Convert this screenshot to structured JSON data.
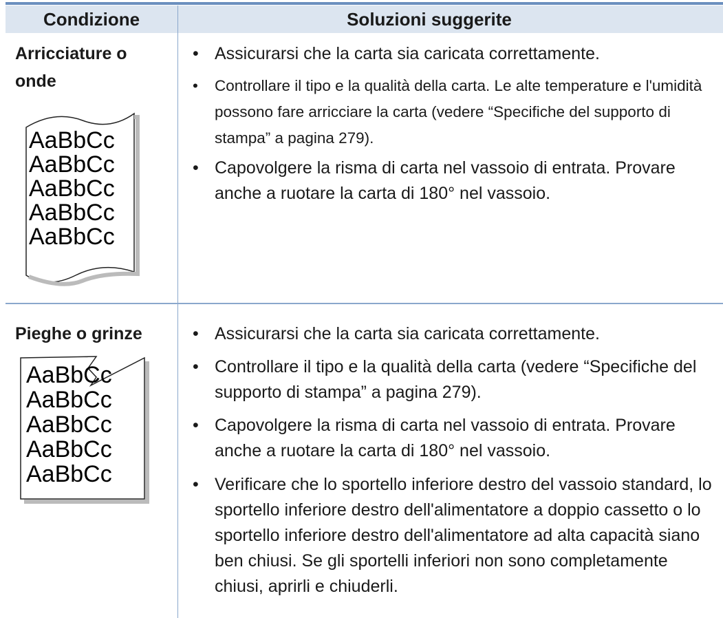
{
  "table": {
    "headers": [
      "Condizione",
      "Soluzioni suggerite"
    ],
    "rows": [
      {
        "condition": "Arricciature o onde",
        "illustration": [
          "AaBbCc",
          "AaBbCc",
          "AaBbCc",
          "AaBbCc",
          "AaBbCc"
        ],
        "solutions": [
          "Assicurarsi che la carta sia caricata correttamente.",
          "Controllare il tipo e la qualità della carta. Le alte temperature e l'umidità possono fare arricciare la carta (vedere “Specifiche del supporto di stampa” a pagina 279).",
          "Capovolgere la risma di carta nel vassoio di entrata. Provare anche a ruotare la carta di 180° nel vassoio."
        ]
      },
      {
        "condition": "Pieghe o grinze",
        "illustration": [
          "AaBbCc",
          "AaBbCc",
          "AaBbCc",
          "AaBbCc",
          "AaBbCc"
        ],
        "solutions": [
          "Assicurarsi che la carta sia caricata correttamente.",
          "Controllare il tipo e la qualità della carta (vedere “Specifiche del supporto di stampa” a pagina 279).",
          "Capovolgere la risma di carta nel vassoio di entrata. Provare anche a ruotare la carta di 180° nel vassoio.",
          "Verificare che lo sportello inferiore destro del vassoio standard, lo sportello inferiore destro dell'alimentatore a doppio cassetto o lo sportello inferiore destro dell'alimentatore ad alta capacità siano ben chiusi. Se gli sportelli inferiori non sono completamente chiusi, aprirli e chiuderli."
        ]
      }
    ]
  }
}
